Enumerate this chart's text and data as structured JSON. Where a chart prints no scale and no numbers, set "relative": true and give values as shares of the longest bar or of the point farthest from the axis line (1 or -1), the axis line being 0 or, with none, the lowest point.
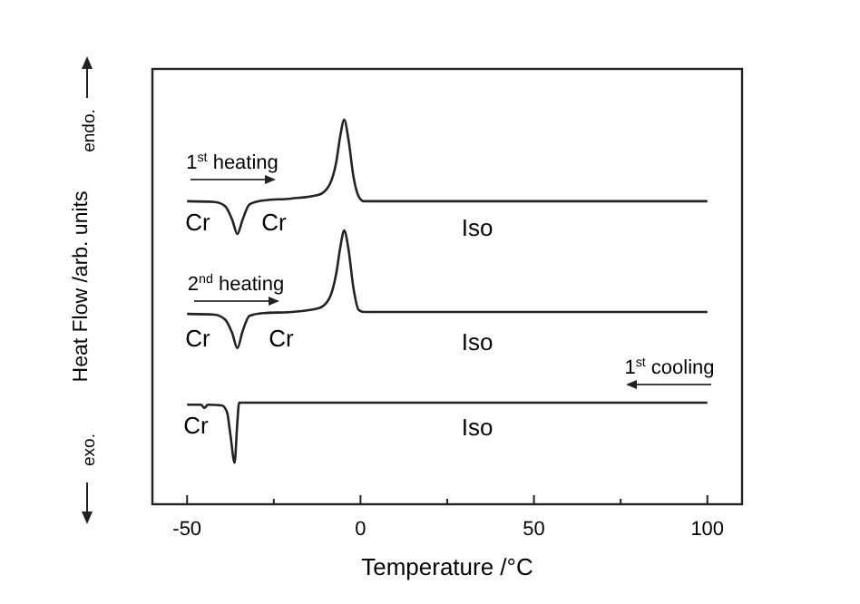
{
  "chart_data": {
    "type": "line",
    "relative": true,
    "xlabel": "Temperature /°C",
    "ylabel": "Heat Flow /arb. units",
    "xlim": [
      -60,
      110
    ],
    "xticks": [
      -50,
      {
        "value": -25,
        "label": null
      },
      0,
      {
        "value": 25,
        "label": null
      },
      50,
      {
        "value": 75,
        "label": null
      },
      100
    ],
    "line_style": "solid",
    "grid": false,
    "series": [
      {
        "color": "#222222",
        "x": [
          -50,
          -42,
          -39,
          -37,
          -35.5,
          -34,
          -32,
          -28,
          -20,
          -12,
          -9,
          -7,
          -5.8,
          -4.7,
          -3.5,
          -2,
          -0.5,
          1,
          10,
          50,
          100
        ],
        "values": [
          0.788,
          0.786,
          0.775,
          0.74,
          0.703,
          0.74,
          0.78,
          0.79,
          0.795,
          0.805,
          0.83,
          0.89,
          0.96,
          1,
          0.95,
          0.85,
          0.8,
          0.788,
          0.788,
          0.788,
          0.788
        ]
      },
      {
        "color": "#222222",
        "x": [
          -50,
          -42,
          -39,
          -37,
          -35.5,
          -34,
          -32,
          -28,
          -20,
          -12,
          -9,
          -7,
          -5.8,
          -4.7,
          -3.5,
          -2,
          -0.5,
          1,
          10,
          50,
          100
        ],
        "values": [
          0.495,
          0.493,
          0.48,
          0.445,
          0.406,
          0.45,
          0.49,
          0.497,
          0.5,
          0.51,
          0.535,
          0.6,
          0.67,
          0.712,
          0.665,
          0.56,
          0.505,
          0.5,
          0.5,
          0.5,
          0.5
        ]
      },
      {
        "color": "#222222",
        "x": [
          -50,
          -46,
          -45,
          -44,
          -40,
          -38.5,
          -37.5,
          -36.3,
          -35.6,
          -35,
          -20,
          50,
          100
        ],
        "values": [
          0.259,
          0.259,
          0.25,
          0.259,
          0.257,
          0.24,
          0.18,
          0.108,
          0.2,
          0.264,
          0.264,
          0.264,
          0.264
        ]
      }
    ],
    "annotations": [
      "1$^{st}$ heating",
      "Cr",
      "Cr",
      "Iso",
      "2$^{nd}$ heating",
      "Cr",
      "Cr",
      "Iso",
      "1$^{st}$ cooling",
      "Cr",
      "Iso",
      "endo.",
      "exo."
    ]
  }
}
